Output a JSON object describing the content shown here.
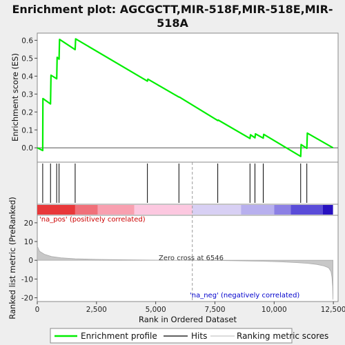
{
  "chart_data": {
    "type": "line",
    "title_line1": "Enrichment plot: AGCGCTT,MIR-518F,MIR-518E,MIR-",
    "title_line2": "518A",
    "es_panel": {
      "ylabel": "Enrichment score (ES)",
      "ylim": [
        -0.08,
        0.64
      ],
      "yticks": [
        "0.0",
        "0.1",
        "0.2",
        "0.3",
        "0.4",
        "0.5",
        "0.6"
      ],
      "ytick_values": [
        0.0,
        0.1,
        0.2,
        0.3,
        0.4,
        0.5,
        0.6
      ],
      "line_color": "#00ee00",
      "x": [
        0,
        230,
        240,
        560,
        580,
        820,
        840,
        920,
        940,
        1600,
        1620,
        4650,
        4670,
        5980,
        6000,
        7620,
        7640,
        8980,
        9000,
        9190,
        9210,
        9540,
        9560,
        11120,
        11140,
        11380,
        11400,
        12485
      ],
      "y": [
        0.0,
        -0.015,
        0.275,
        0.245,
        0.405,
        0.385,
        0.505,
        0.495,
        0.605,
        0.548,
        0.608,
        0.372,
        0.383,
        0.283,
        0.283,
        0.152,
        0.155,
        0.052,
        0.073,
        0.056,
        0.078,
        0.054,
        0.075,
        -0.048,
        0.018,
        -0.003,
        0.082,
        0.0
      ]
    },
    "hits": [
      230,
      560,
      820,
      920,
      1600,
      4650,
      5980,
      7620,
      8980,
      9190,
      9540,
      11120,
      11380
    ],
    "ranked_panel": {
      "ylabel": "Ranked list metric (PreRanked)",
      "ylim": [
        -22,
        24
      ],
      "yticks": [
        "20",
        "10",
        "0",
        "-10",
        "-20"
      ],
      "ytick_values": [
        20,
        10,
        0,
        -10,
        -20
      ],
      "xlabel": "Rank in Ordered Dataset",
      "xticks": [
        "0",
        "2,500",
        "5,000",
        "7,500",
        "10,000",
        "12,500"
      ],
      "xtick_values": [
        0,
        2500,
        5000,
        7500,
        10000,
        12500
      ],
      "xlim": [
        0,
        12700
      ],
      "n_genes": 12485,
      "zero_cross": 6546,
      "zero_cross_label": "Zero cross at 6546",
      "pos_label": "'na_pos' (positively correlated)",
      "neg_label": "'na_neg' (negatively correlated)",
      "metric_curve_x": [
        0,
        100,
        300,
        600,
        1000,
        1600,
        2500,
        3500,
        4500,
        5500,
        6546,
        7500,
        8500,
        9500,
        10300,
        10900,
        11400,
        11800,
        12100,
        12300,
        12400,
        12440,
        12470,
        12485
      ],
      "metric_curve_y": [
        7.5,
        4.8,
        3.2,
        2.0,
        1.3,
        0.8,
        0.5,
        0.3,
        0.15,
        0.06,
        0.0,
        -0.12,
        -0.28,
        -0.5,
        -0.85,
        -1.2,
        -1.6,
        -2.2,
        -3.0,
        -4.0,
        -6.0,
        -9.0,
        -14.0,
        -21.0
      ]
    },
    "color_bar": {
      "segments": [
        {
          "start": 0,
          "end": 1600,
          "color": "#e8383a"
        },
        {
          "start": 1600,
          "end": 2550,
          "color": "#f0707a"
        },
        {
          "start": 2550,
          "end": 4100,
          "color": "#f8a0b0"
        },
        {
          "start": 4100,
          "end": 6546,
          "color": "#fcc8e0"
        },
        {
          "start": 6546,
          "end": 8600,
          "color": "#d8d0f4"
        },
        {
          "start": 8600,
          "end": 10000,
          "color": "#b8b0ee"
        },
        {
          "start": 10000,
          "end": 10700,
          "color": "#8c80e4"
        },
        {
          "start": 10700,
          "end": 12050,
          "color": "#5a4cd8"
        },
        {
          "start": 12050,
          "end": 12485,
          "color": "#2812c0"
        }
      ]
    },
    "legend": [
      {
        "label": "Enrichment profile",
        "color": "#00ee00"
      },
      {
        "label": "Hits",
        "color": "#000000"
      },
      {
        "label": "Ranking metric scores",
        "color": "#c8c8c8"
      }
    ]
  }
}
